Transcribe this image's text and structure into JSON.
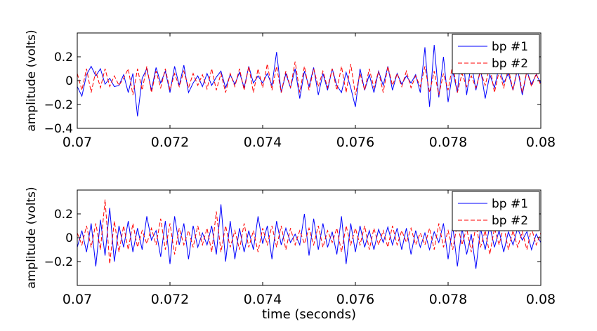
{
  "figure": {
    "xlabel": "time (seconds)"
  },
  "chart_data": [
    {
      "type": "line",
      "ylabel": "amplitude (volts)",
      "xlim": [
        0.07,
        0.08
      ],
      "ylim": [
        -0.4,
        0.4
      ],
      "xticks": [
        0.07,
        0.072,
        0.074,
        0.076,
        0.078,
        0.08
      ],
      "xtick_labels": [
        "0.07",
        "0.072",
        "0.074",
        "0.076",
        "0.078",
        "0.08"
      ],
      "yticks": [
        -0.4,
        -0.2,
        0,
        0.2
      ],
      "ytick_labels": [
        "−0.4",
        "−0.2",
        "0",
        "0.2"
      ],
      "grid": false,
      "legend_position": "top-right",
      "series": [
        {
          "name": "bp #1",
          "color": "#0000ff",
          "style": "solid",
          "x": [
            0.07,
            0.0701,
            0.0702,
            0.0703,
            0.0704,
            0.0705,
            0.0706,
            0.0707,
            0.0708,
            0.0709,
            0.071,
            0.0711,
            0.0712,
            0.0713,
            0.0714,
            0.0715,
            0.0716,
            0.0717,
            0.0718,
            0.0719,
            0.072,
            0.0721,
            0.0722,
            0.0723,
            0.0724,
            0.0725,
            0.0726,
            0.0727,
            0.0728,
            0.0729,
            0.073,
            0.0731,
            0.0732,
            0.0733,
            0.0734,
            0.0735,
            0.0736,
            0.0737,
            0.0738,
            0.0739,
            0.074,
            0.0741,
            0.0742,
            0.0743,
            0.0744,
            0.0745,
            0.0746,
            0.0747,
            0.0748,
            0.0749,
            0.075,
            0.0751,
            0.0752,
            0.0753,
            0.0754,
            0.0755,
            0.0756,
            0.0757,
            0.0758,
            0.0759,
            0.076,
            0.0761,
            0.0762,
            0.0763,
            0.0764,
            0.0765,
            0.0766,
            0.0767,
            0.0768,
            0.0769,
            0.077,
            0.0771,
            0.0772,
            0.0773,
            0.0774,
            0.0775,
            0.0776,
            0.0777,
            0.0778,
            0.0779,
            0.078,
            0.0781,
            0.0782,
            0.0783,
            0.0784,
            0.0785,
            0.0786,
            0.0787,
            0.0788,
            0.0789,
            0.079,
            0.0791,
            0.0792,
            0.0793,
            0.0794,
            0.0795,
            0.0796,
            0.0797,
            0.0798,
            0.0799,
            0.08
          ],
          "values": [
            -0.05,
            -0.13,
            0.05,
            0.12,
            0.04,
            0.1,
            -0.03,
            0.02,
            -0.05,
            -0.04,
            0.05,
            -0.1,
            0.06,
            -0.3,
            0.02,
            0.1,
            -0.08,
            0.11,
            -0.02,
            0.08,
            -0.1,
            0.12,
            -0.04,
            0.13,
            -0.1,
            -0.02,
            0.04,
            -0.05,
            0.06,
            -0.04,
            0.03,
            0.08,
            -0.06,
            0.05,
            -0.03,
            0.07,
            -0.06,
            0.12,
            -0.02,
            0.04,
            -0.02,
            0.06,
            -0.04,
            0.24,
            -0.1,
            0.06,
            -0.06,
            0.1,
            -0.15,
            0.08,
            -0.05,
            0.11,
            -0.12,
            0.06,
            -0.08,
            0.1,
            -0.04,
            -0.1,
            0.07,
            -0.06,
            -0.22,
            0.1,
            -0.08,
            0.05,
            -0.1,
            0.08,
            -0.04,
            0.12,
            -0.08,
            0.06,
            -0.03,
            0.04,
            -0.02,
            0.05,
            -0.1,
            0.28,
            -0.22,
            0.3,
            -0.14,
            0.2,
            -0.18,
            0.08,
            -0.1,
            0.3,
            -0.12,
            0.15,
            -0.08,
            0.1,
            -0.15,
            0.05,
            -0.06,
            0.12,
            -0.02,
            0.06,
            -0.08,
            0.1,
            -0.12,
            0.08,
            -0.03,
            0.05,
            -0.02
          ]
        },
        {
          "name": "bp #2",
          "color": "#ff0000",
          "style": "dashed",
          "x": [
            0.07,
            0.0701,
            0.0702,
            0.0703,
            0.0704,
            0.0705,
            0.0706,
            0.0707,
            0.0708,
            0.0709,
            0.071,
            0.0711,
            0.0712,
            0.0713,
            0.0714,
            0.0715,
            0.0716,
            0.0717,
            0.0718,
            0.0719,
            0.072,
            0.0721,
            0.0722,
            0.0723,
            0.0724,
            0.0725,
            0.0726,
            0.0727,
            0.0728,
            0.0729,
            0.073,
            0.0731,
            0.0732,
            0.0733,
            0.0734,
            0.0735,
            0.0736,
            0.0737,
            0.0738,
            0.0739,
            0.074,
            0.0741,
            0.0742,
            0.0743,
            0.0744,
            0.0745,
            0.0746,
            0.0747,
            0.0748,
            0.0749,
            0.075,
            0.0751,
            0.0752,
            0.0753,
            0.0754,
            0.0755,
            0.0756,
            0.0757,
            0.0758,
            0.0759,
            0.076,
            0.0761,
            0.0762,
            0.0763,
            0.0764,
            0.0765,
            0.0766,
            0.0767,
            0.0768,
            0.0769,
            0.077,
            0.0771,
            0.0772,
            0.0773,
            0.0774,
            0.0775,
            0.0776,
            0.0777,
            0.0778,
            0.0779,
            0.078,
            0.0781,
            0.0782,
            0.0783,
            0.0784,
            0.0785,
            0.0786,
            0.0787,
            0.0788,
            0.0789,
            0.079,
            0.0791,
            0.0792,
            0.0793,
            0.0794,
            0.0795,
            0.0796,
            0.0797,
            0.0798,
            0.0799,
            0.08
          ],
          "values": [
            0.06,
            -0.08,
            0.1,
            -0.1,
            0.08,
            -0.06,
            0.1,
            -0.05,
            0.04,
            -0.04,
            0.02,
            0.1,
            -0.12,
            0.1,
            -0.08,
            0.12,
            -0.1,
            0.08,
            -0.06,
            0.1,
            -0.08,
            0.06,
            -0.05,
            0.08,
            -0.06,
            0.06,
            -0.04,
            0.05,
            -0.07,
            0.1,
            -0.08,
            0.06,
            -0.1,
            0.06,
            -0.05,
            0.1,
            -0.08,
            0.12,
            -0.1,
            0.1,
            -0.06,
            0.14,
            -0.08,
            0.12,
            -0.1,
            0.08,
            -0.06,
            0.16,
            -0.1,
            0.12,
            -0.08,
            0.1,
            -0.05,
            0.08,
            -0.06,
            0.1,
            -0.08,
            0.12,
            -0.1,
            0.14,
            -0.12,
            0.06,
            -0.08,
            0.1,
            -0.06,
            0.08,
            -0.1,
            0.12,
            -0.04,
            0.06,
            -0.05,
            0.08,
            -0.06,
            0.04,
            -0.05,
            0.12,
            -0.1,
            0.08,
            -0.12,
            0.06,
            -0.08,
            0.14,
            -0.1,
            0.06,
            -0.05,
            0.04,
            -0.06,
            0.08,
            -0.04,
            0.12,
            -0.1,
            0.08,
            -0.06,
            0.1,
            -0.08,
            0.12,
            -0.1,
            0.08,
            -0.05,
            0.06,
            -0.04
          ]
        }
      ]
    },
    {
      "type": "line",
      "ylabel": "amplitude (volts)",
      "xlim": [
        0.07,
        0.08
      ],
      "ylim": [
        -0.4,
        0.4
      ],
      "xticks": [
        0.07,
        0.072,
        0.074,
        0.076,
        0.078,
        0.08
      ],
      "xtick_labels": [
        "0.07",
        "0.072",
        "0.074",
        "0.076",
        "0.078",
        "0.08"
      ],
      "yticks": [
        -0.2,
        0,
        0.2
      ],
      "ytick_labels": [
        "−0.2",
        "0",
        "0.2"
      ],
      "grid": false,
      "legend_position": "top-right",
      "series": [
        {
          "name": "bp #1",
          "color": "#0000ff",
          "style": "solid",
          "x": [
            0.07,
            0.0701,
            0.0702,
            0.0703,
            0.0704,
            0.0705,
            0.0706,
            0.0707,
            0.0708,
            0.0709,
            0.071,
            0.0711,
            0.0712,
            0.0713,
            0.0714,
            0.0715,
            0.0716,
            0.0717,
            0.0718,
            0.0719,
            0.072,
            0.0721,
            0.0722,
            0.0723,
            0.0724,
            0.0725,
            0.0726,
            0.0727,
            0.0728,
            0.0729,
            0.073,
            0.0731,
            0.0732,
            0.0733,
            0.0734,
            0.0735,
            0.0736,
            0.0737,
            0.0738,
            0.0739,
            0.074,
            0.0741,
            0.0742,
            0.0743,
            0.0744,
            0.0745,
            0.0746,
            0.0747,
            0.0748,
            0.0749,
            0.075,
            0.0751,
            0.0752,
            0.0753,
            0.0754,
            0.0755,
            0.0756,
            0.0757,
            0.0758,
            0.0759,
            0.076,
            0.0761,
            0.0762,
            0.0763,
            0.0764,
            0.0765,
            0.0766,
            0.0767,
            0.0768,
            0.0769,
            0.077,
            0.0771,
            0.0772,
            0.0773,
            0.0774,
            0.0775,
            0.0776,
            0.0777,
            0.0778,
            0.0779,
            0.078,
            0.0781,
            0.0782,
            0.0783,
            0.0784,
            0.0785,
            0.0786,
            0.0787,
            0.0788,
            0.0789,
            0.079,
            0.0791,
            0.0792,
            0.0793,
            0.0794,
            0.0795,
            0.0796,
            0.0797,
            0.0798,
            0.0799,
            0.08
          ],
          "values": [
            -0.08,
            0.06,
            -0.12,
            0.12,
            -0.24,
            0.15,
            -0.15,
            0.25,
            -0.2,
            0.1,
            -0.08,
            0.14,
            -0.12,
            0.08,
            -0.1,
            0.18,
            -0.02,
            0.06,
            -0.16,
            0.14,
            -0.22,
            0.18,
            -0.06,
            0.12,
            -0.18,
            0.1,
            -0.08,
            0.04,
            -0.06,
            0.1,
            -0.14,
            0.28,
            -0.2,
            0.14,
            -0.18,
            0.08,
            -0.12,
            0.06,
            -0.1,
            0.18,
            -0.05,
            0.1,
            -0.18,
            0.14,
            -0.06,
            0.08,
            -0.04,
            0.03,
            -0.06,
            0.2,
            -0.15,
            0.16,
            -0.1,
            0.12,
            -0.08,
            0.05,
            -0.14,
            0.18,
            -0.22,
            0.12,
            -0.12,
            0.1,
            -0.08,
            0.06,
            -0.1,
            0.07,
            -0.04,
            0.09,
            -0.06,
            0.08,
            -0.1,
            0.08,
            -0.14,
            0.06,
            -0.08,
            0.04,
            -0.1,
            0.05,
            -0.04,
            0.12,
            -0.18,
            0.1,
            -0.24,
            0.08,
            -0.14,
            0.03,
            -0.26,
            0.08,
            -0.1,
            0.1,
            -0.08,
            0.06,
            -0.12,
            0.05,
            -0.06,
            0.08,
            -0.02,
            0.05,
            -0.1,
            0.03,
            -0.04
          ]
        },
        {
          "name": "bp #2",
          "color": "#ff0000",
          "style": "dashed",
          "x": [
            0.07,
            0.0701,
            0.0702,
            0.0703,
            0.0704,
            0.0705,
            0.0706,
            0.0707,
            0.0708,
            0.0709,
            0.071,
            0.0711,
            0.0712,
            0.0713,
            0.0714,
            0.0715,
            0.0716,
            0.0717,
            0.0718,
            0.0719,
            0.072,
            0.0721,
            0.0722,
            0.0723,
            0.0724,
            0.0725,
            0.0726,
            0.0727,
            0.0728,
            0.0729,
            0.073,
            0.0731,
            0.0732,
            0.0733,
            0.0734,
            0.0735,
            0.0736,
            0.0737,
            0.0738,
            0.0739,
            0.074,
            0.0741,
            0.0742,
            0.0743,
            0.0744,
            0.0745,
            0.0746,
            0.0747,
            0.0748,
            0.0749,
            0.075,
            0.0751,
            0.0752,
            0.0753,
            0.0754,
            0.0755,
            0.0756,
            0.0757,
            0.0758,
            0.0759,
            0.076,
            0.0761,
            0.0762,
            0.0763,
            0.0764,
            0.0765,
            0.0766,
            0.0767,
            0.0768,
            0.0769,
            0.077,
            0.0771,
            0.0772,
            0.0773,
            0.0774,
            0.0775,
            0.0776,
            0.0777,
            0.0778,
            0.0779,
            0.078,
            0.0781,
            0.0782,
            0.0783,
            0.0784,
            0.0785,
            0.0786,
            0.0787,
            0.0788,
            0.0789,
            0.079,
            0.0791,
            0.0792,
            0.0793,
            0.0794,
            0.0795,
            0.0796,
            0.0797,
            0.0798,
            0.0799,
            0.08
          ],
          "values": [
            0.04,
            -0.06,
            0.1,
            -0.08,
            0.12,
            -0.1,
            0.32,
            -0.22,
            0.14,
            -0.12,
            0.1,
            -0.1,
            0.12,
            -0.08,
            0.06,
            -0.05,
            0.08,
            -0.06,
            0.16,
            -0.1,
            0.12,
            -0.14,
            0.08,
            -0.06,
            0.06,
            -0.08,
            0.1,
            -0.06,
            0.08,
            -0.12,
            0.22,
            -0.12,
            0.1,
            -0.08,
            0.06,
            -0.1,
            0.12,
            -0.08,
            0.06,
            -0.12,
            0.08,
            -0.06,
            0.1,
            -0.08,
            0.1,
            -0.1,
            0.08,
            -0.06,
            0.06,
            -0.05,
            0.08,
            -0.06,
            0.1,
            -0.08,
            0.06,
            -0.04,
            0.08,
            -0.12,
            0.1,
            -0.06,
            0.08,
            -0.06,
            0.1,
            -0.1,
            0.08,
            -0.06,
            0.06,
            -0.08,
            0.1,
            -0.06,
            0.06,
            -0.04,
            0.08,
            -0.06,
            0.04,
            -0.06,
            0.08,
            -0.1,
            0.12,
            -0.08,
            0.06,
            -0.1,
            0.12,
            -0.06,
            0.08,
            -0.12,
            0.1,
            -0.08,
            0.06,
            -0.14,
            0.08,
            -0.06,
            0.1,
            -0.1,
            0.06,
            -0.08,
            0.05,
            -0.1,
            0.08,
            -0.06,
            0.04
          ]
        }
      ]
    }
  ]
}
